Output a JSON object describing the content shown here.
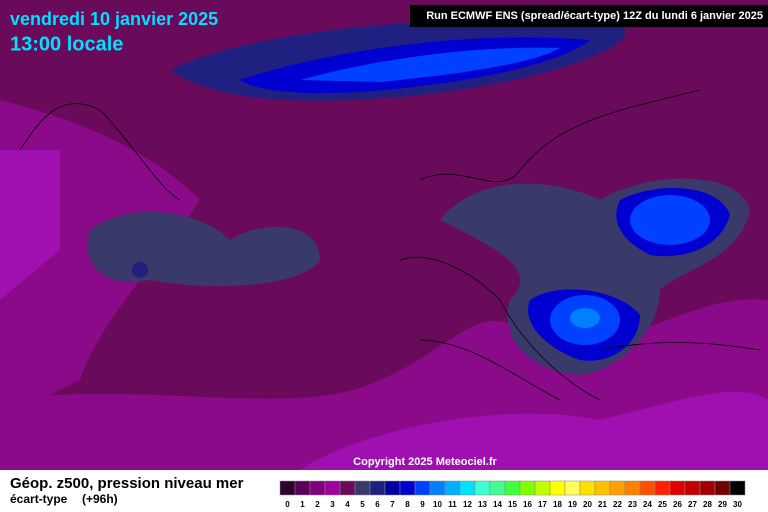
{
  "header": {
    "date": "vendredi 10 janvier 2025",
    "time": "13:00 locale",
    "run": "Run ECMWF ENS (spread/écart-type) 12Z du lundi 6 janvier 2025"
  },
  "copyright": "Copyright 2025 Meteociel.fr",
  "footer": {
    "title": "Géop. z500, pression niveau mer",
    "subtitle": "écart-type",
    "lead": "(+96h)"
  },
  "legend": {
    "items": [
      {
        "value": 0,
        "color": "#300030"
      },
      {
        "value": 1,
        "color": "#5a005a"
      },
      {
        "value": 2,
        "color": "#800080"
      },
      {
        "value": 3,
        "color": "#a000a0"
      },
      {
        "value": 4,
        "color": "#6a0a5a"
      },
      {
        "value": 5,
        "color": "#3a3a6a"
      },
      {
        "value": 6,
        "color": "#202080"
      },
      {
        "value": 7,
        "color": "#0000a0"
      },
      {
        "value": 8,
        "color": "#0000d0"
      },
      {
        "value": 9,
        "color": "#0040ff"
      },
      {
        "value": 10,
        "color": "#0080ff"
      },
      {
        "value": 11,
        "color": "#00b0ff"
      },
      {
        "value": 12,
        "color": "#00e0ff"
      },
      {
        "value": 13,
        "color": "#40ffd0"
      },
      {
        "value": 14,
        "color": "#40ff90"
      },
      {
        "value": 15,
        "color": "#40ff40"
      },
      {
        "value": 16,
        "color": "#80ff00"
      },
      {
        "value": 17,
        "color": "#c0ff00"
      },
      {
        "value": 18,
        "color": "#ffff00"
      },
      {
        "value": 19,
        "color": "#ffff60"
      },
      {
        "value": 20,
        "color": "#ffe000"
      },
      {
        "value": 21,
        "color": "#ffc000"
      },
      {
        "value": 22,
        "color": "#ffa000"
      },
      {
        "value": 23,
        "color": "#ff8000"
      },
      {
        "value": 24,
        "color": "#ff5000"
      },
      {
        "value": 25,
        "color": "#ff2000"
      },
      {
        "value": 26,
        "color": "#e00000"
      },
      {
        "value": 27,
        "color": "#c00000"
      },
      {
        "value": 28,
        "color": "#a00000"
      },
      {
        "value": 29,
        "color": "#700000"
      },
      {
        "value": 30,
        "color": "#000000"
      }
    ]
  }
}
